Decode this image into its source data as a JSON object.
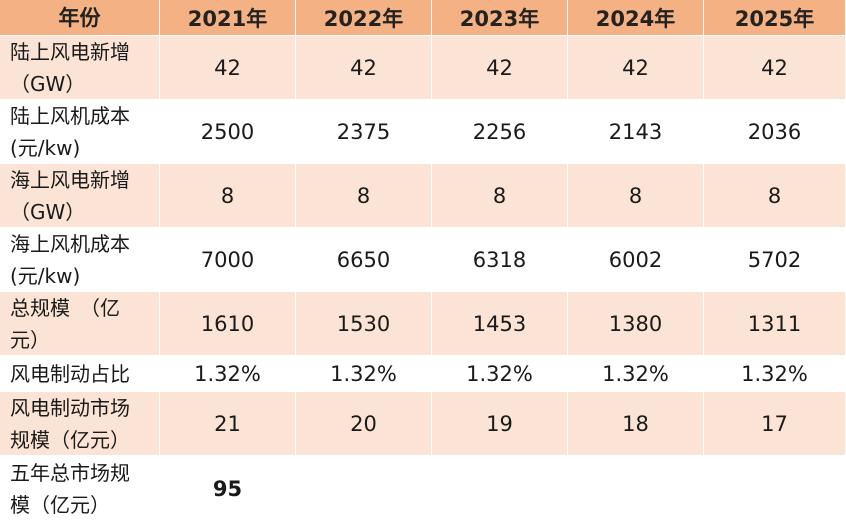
{
  "table": {
    "headers": [
      "年份",
      "2021年",
      "2022年",
      "2023年",
      "2024年",
      "2025年"
    ],
    "rows": [
      {
        "label": "陆上风电新增\n（GW）",
        "values": [
          "42",
          "42",
          "42",
          "42",
          "42"
        ]
      },
      {
        "label": "陆上风机成本\n(元/kw)",
        "values": [
          "2500",
          "2375",
          "2256",
          "2143",
          "2036"
        ]
      },
      {
        "label": "海上风电新增\n（GW）",
        "values": [
          "8",
          "8",
          "8",
          "8",
          "8"
        ]
      },
      {
        "label": "海上风机成本\n(元/kw)",
        "values": [
          "7000",
          "6650",
          "6318",
          "6002",
          "5702"
        ]
      },
      {
        "label": "总规模　（亿\n元）",
        "values": [
          "1610",
          "1530",
          "1453",
          "1380",
          "1311"
        ]
      },
      {
        "label": "风电制动占比",
        "values": [
          "1.32%",
          "1.32%",
          "1.32%",
          "1.32%",
          "1.32%"
        ]
      },
      {
        "label": "风电制动市场\n规模（亿元）",
        "values": [
          "21",
          "20",
          "19",
          "18",
          "17"
        ]
      },
      {
        "label": "五年总市场规\n模（亿元）",
        "values": [
          "95",
          "",
          "",
          "",
          ""
        ]
      }
    ]
  }
}
